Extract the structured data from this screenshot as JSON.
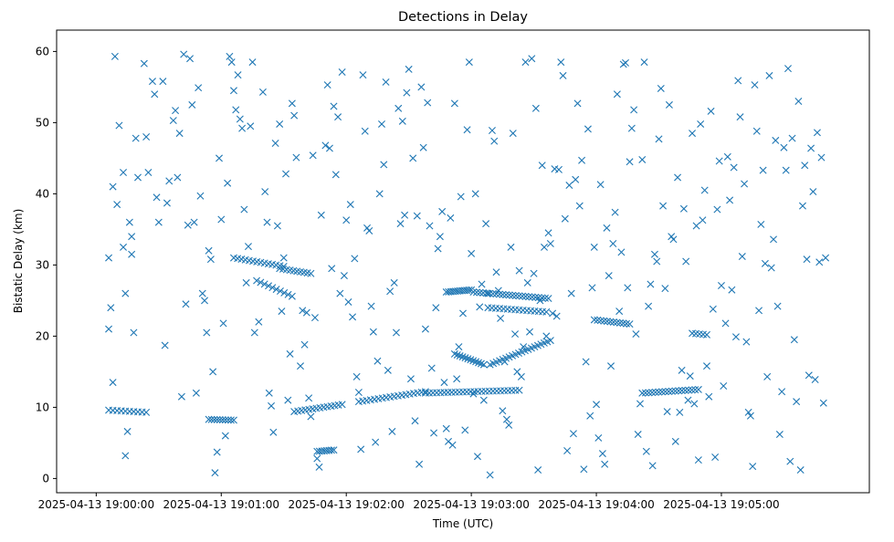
{
  "chart_data": {
    "type": "scatter",
    "title": "Detections in Delay",
    "xlabel": "Time (UTC)",
    "ylabel": "Bistatic Delay (km)",
    "marker": "x",
    "marker_color": "#1f77b4",
    "x_unit": "seconds",
    "xlim": [
      -19,
      371
    ],
    "ylim": [
      -2,
      63
    ],
    "x_ticks": [
      {
        "value": 0,
        "label": "2025-04-13 19:00:00"
      },
      {
        "value": 60,
        "label": "2025-04-13 19:01:00"
      },
      {
        "value": 120,
        "label": "2025-04-13 19:02:00"
      },
      {
        "value": 180,
        "label": "2025-04-13 19:03:00"
      },
      {
        "value": 240,
        "label": "2025-04-13 19:04:00"
      },
      {
        "value": 300,
        "label": "2025-04-13 19:05:00"
      }
    ],
    "y_ticks": [
      0,
      10,
      20,
      30,
      40,
      50,
      60
    ],
    "grid": false,
    "tracks": [
      {
        "t_start": 6,
        "t_end": 24,
        "delay_start": 9.6,
        "delay_end": 9.3,
        "count": 10
      },
      {
        "t_start": 54,
        "t_end": 66,
        "delay_start": 8.3,
        "delay_end": 8.2,
        "count": 10
      },
      {
        "t_start": 66,
        "t_end": 90,
        "delay_start": 31.0,
        "delay_end": 29.8,
        "count": 14
      },
      {
        "t_start": 88,
        "t_end": 103,
        "delay_start": 29.5,
        "delay_end": 28.8,
        "count": 10
      },
      {
        "t_start": 77,
        "t_end": 94,
        "delay_start": 27.8,
        "delay_end": 25.6,
        "count": 10
      },
      {
        "t_start": 95,
        "t_end": 118,
        "delay_start": 9.4,
        "delay_end": 10.4,
        "count": 14
      },
      {
        "t_start": 106,
        "t_end": 114,
        "delay_start": 3.8,
        "delay_end": 4.0,
        "count": 8
      },
      {
        "t_start": 126,
        "t_end": 158,
        "delay_start": 10.8,
        "delay_end": 12.2,
        "count": 18
      },
      {
        "t_start": 158,
        "t_end": 203,
        "delay_start": 12.0,
        "delay_end": 12.4,
        "count": 26
      },
      {
        "t_start": 168,
        "t_end": 180,
        "delay_start": 26.2,
        "delay_end": 26.5,
        "count": 12
      },
      {
        "t_start": 181,
        "t_end": 217,
        "delay_start": 26.2,
        "delay_end": 25.3,
        "count": 24
      },
      {
        "t_start": 188,
        "t_end": 216,
        "delay_start": 24.0,
        "delay_end": 23.4,
        "count": 16
      },
      {
        "t_start": 172,
        "t_end": 186,
        "delay_start": 17.5,
        "delay_end": 16.0,
        "count": 12
      },
      {
        "t_start": 189,
        "t_end": 218,
        "delay_start": 16.0,
        "delay_end": 19.4,
        "count": 20
      },
      {
        "t_start": 239,
        "t_end": 256,
        "delay_start": 22.3,
        "delay_end": 21.7,
        "count": 12
      },
      {
        "t_start": 262,
        "t_end": 289,
        "delay_start": 12.0,
        "delay_end": 12.5,
        "count": 18
      },
      {
        "t_start": 286,
        "t_end": 293,
        "delay_start": 20.4,
        "delay_end": 20.2,
        "count": 5
      }
    ],
    "scatter": [
      [
        6,
        31
      ],
      [
        7,
        24
      ],
      [
        6,
        21
      ],
      [
        8,
        41
      ],
      [
        9,
        59.3
      ],
      [
        8,
        13.5
      ],
      [
        10,
        38.5
      ],
      [
        11,
        49.6
      ],
      [
        13,
        43
      ],
      [
        13,
        32.5
      ],
      [
        14,
        26
      ],
      [
        14,
        3.2
      ],
      [
        15,
        6.6
      ],
      [
        16,
        36
      ],
      [
        17,
        34
      ],
      [
        17,
        31.5
      ],
      [
        18,
        20.5
      ],
      [
        19,
        47.8
      ],
      [
        20,
        42.3
      ],
      [
        23,
        58.3
      ],
      [
        24,
        48
      ],
      [
        25,
        43
      ],
      [
        27,
        55.8
      ],
      [
        28,
        54
      ],
      [
        29,
        39.5
      ],
      [
        30,
        36
      ],
      [
        32,
        55.8
      ],
      [
        33,
        18.7
      ],
      [
        34,
        38.7
      ],
      [
        35,
        41.8
      ],
      [
        37,
        50.3
      ],
      [
        38,
        51.7
      ],
      [
        39,
        42.3
      ],
      [
        40,
        48.5
      ],
      [
        41,
        11.5
      ],
      [
        42,
        59.6
      ],
      [
        43,
        24.5
      ],
      [
        44,
        35.6
      ],
      [
        45,
        59
      ],
      [
        46,
        52.5
      ],
      [
        47,
        36
      ],
      [
        48,
        12
      ],
      [
        49,
        54.9
      ],
      [
        50,
        39.7
      ],
      [
        51,
        26
      ],
      [
        52,
        25
      ],
      [
        53,
        20.5
      ],
      [
        54,
        32
      ],
      [
        55,
        30.8
      ],
      [
        56,
        15
      ],
      [
        57,
        0.8
      ],
      [
        58,
        3.7
      ],
      [
        59,
        45
      ],
      [
        60,
        36.4
      ],
      [
        61,
        21.8
      ],
      [
        62,
        6
      ],
      [
        63,
        41.5
      ],
      [
        64,
        59.3
      ],
      [
        65,
        58.5
      ],
      [
        66,
        54.5
      ],
      [
        67,
        51.8
      ],
      [
        68,
        56.7
      ],
      [
        69,
        50.5
      ],
      [
        70,
        49.2
      ],
      [
        71,
        37.8
      ],
      [
        72,
        27.5
      ],
      [
        73,
        32.6
      ],
      [
        74,
        49.5
      ],
      [
        75,
        58.5
      ],
      [
        76,
        20.5
      ],
      [
        78,
        22
      ],
      [
        80,
        54.3
      ],
      [
        81,
        40.3
      ],
      [
        82,
        36
      ],
      [
        83,
        12
      ],
      [
        84,
        10.2
      ],
      [
        85,
        6.5
      ],
      [
        86,
        47.1
      ],
      [
        87,
        35.5
      ],
      [
        88,
        49.8
      ],
      [
        89,
        23.5
      ],
      [
        90,
        31
      ],
      [
        91,
        42.8
      ],
      [
        92,
        11
      ],
      [
        93,
        17.5
      ],
      [
        94,
        52.7
      ],
      [
        95,
        51
      ],
      [
        96,
        45.1
      ],
      [
        98,
        15.8
      ],
      [
        99,
        23.6
      ],
      [
        100,
        18.8
      ],
      [
        101,
        23.3
      ],
      [
        102,
        11.3
      ],
      [
        103,
        8.7
      ],
      [
        104,
        45.4
      ],
      [
        105,
        22.6
      ],
      [
        106,
        2.8
      ],
      [
        107,
        1.6
      ],
      [
        108,
        37
      ],
      [
        110,
        46.8
      ],
      [
        111,
        55.3
      ],
      [
        112,
        46.4
      ],
      [
        113,
        29.5
      ],
      [
        114,
        52.3
      ],
      [
        115,
        42.7
      ],
      [
        116,
        50.8
      ],
      [
        117,
        26
      ],
      [
        118,
        57.1
      ],
      [
        119,
        28.5
      ],
      [
        120,
        36.3
      ],
      [
        121,
        24.8
      ],
      [
        122,
        38.5
      ],
      [
        123,
        22.7
      ],
      [
        124,
        30.9
      ],
      [
        125,
        14.3
      ],
      [
        126,
        12.1
      ],
      [
        127,
        4.1
      ],
      [
        128,
        56.7
      ],
      [
        129,
        48.8
      ],
      [
        130,
        35.2
      ],
      [
        131,
        34.8
      ],
      [
        132,
        24.2
      ],
      [
        133,
        20.6
      ],
      [
        134,
        5.1
      ],
      [
        135,
        16.5
      ],
      [
        136,
        40
      ],
      [
        137,
        49.8
      ],
      [
        138,
        44.1
      ],
      [
        139,
        55.7
      ],
      [
        140,
        15.2
      ],
      [
        141,
        26.3
      ],
      [
        142,
        6.6
      ],
      [
        143,
        27.5
      ],
      [
        144,
        20.5
      ],
      [
        145,
        52
      ],
      [
        146,
        35.8
      ],
      [
        147,
        50.2
      ],
      [
        148,
        37
      ],
      [
        149,
        54.2
      ],
      [
        150,
        57.5
      ],
      [
        151,
        14
      ],
      [
        152,
        45
      ],
      [
        153,
        8.1
      ],
      [
        154,
        36.9
      ],
      [
        155,
        2
      ],
      [
        156,
        55
      ],
      [
        157,
        46.5
      ],
      [
        158,
        21
      ],
      [
        159,
        52.8
      ],
      [
        160,
        35.5
      ],
      [
        161,
        15.5
      ],
      [
        162,
        6.4
      ],
      [
        163,
        24
      ],
      [
        164,
        32.3
      ],
      [
        165,
        34
      ],
      [
        166,
        37.5
      ],
      [
        167,
        13.5
      ],
      [
        168,
        7
      ],
      [
        169,
        5.2
      ],
      [
        170,
        36.6
      ],
      [
        171,
        4.7
      ],
      [
        172,
        52.7
      ],
      [
        173,
        14
      ],
      [
        174,
        18.5
      ],
      [
        175,
        39.6
      ],
      [
        176,
        23.2
      ],
      [
        177,
        6.8
      ],
      [
        178,
        49
      ],
      [
        179,
        58.5
      ],
      [
        180,
        31.6
      ],
      [
        181,
        11.9
      ],
      [
        182,
        40
      ],
      [
        183,
        3.1
      ],
      [
        184,
        24.1
      ],
      [
        185,
        27.3
      ],
      [
        186,
        11
      ],
      [
        187,
        35.8
      ],
      [
        188,
        26
      ],
      [
        189,
        0.5
      ],
      [
        190,
        48.9
      ],
      [
        191,
        47.4
      ],
      [
        192,
        29
      ],
      [
        193,
        26.4
      ],
      [
        194,
        22.5
      ],
      [
        195,
        9.5
      ],
      [
        196,
        16.4
      ],
      [
        197,
        8.3
      ],
      [
        198,
        7.5
      ],
      [
        199,
        32.5
      ],
      [
        200,
        48.5
      ],
      [
        201,
        20.3
      ],
      [
        202,
        15
      ],
      [
        203,
        29.2
      ],
      [
        204,
        14.3
      ],
      [
        205,
        18.5
      ],
      [
        206,
        58.5
      ],
      [
        207,
        27.5
      ],
      [
        208,
        20.6
      ],
      [
        209,
        59
      ],
      [
        210,
        28.8
      ],
      [
        211,
        52
      ],
      [
        212,
        1.2
      ],
      [
        213,
        25
      ],
      [
        214,
        44
      ],
      [
        215,
        32.5
      ],
      [
        216,
        20
      ],
      [
        217,
        34.5
      ],
      [
        218,
        33
      ],
      [
        219,
        23.2
      ],
      [
        220,
        43.5
      ],
      [
        221,
        22.8
      ],
      [
        222,
        43.4
      ],
      [
        223,
        58.5
      ],
      [
        224,
        56.6
      ],
      [
        225,
        36.5
      ],
      [
        226,
        3.9
      ],
      [
        227,
        41.2
      ],
      [
        228,
        26
      ],
      [
        229,
        6.3
      ],
      [
        230,
        42
      ],
      [
        231,
        52.7
      ],
      [
        232,
        38.3
      ],
      [
        233,
        44.7
      ],
      [
        234,
        1.3
      ],
      [
        235,
        16.4
      ],
      [
        236,
        49.1
      ],
      [
        237,
        8.8
      ],
      [
        238,
        26.8
      ],
      [
        239,
        32.5
      ],
      [
        240,
        10.4
      ],
      [
        241,
        5.7
      ],
      [
        242,
        41.3
      ],
      [
        243,
        3.5
      ],
      [
        244,
        2
      ],
      [
        245,
        35.2
      ],
      [
        246,
        28.5
      ],
      [
        247,
        15.8
      ],
      [
        248,
        33
      ],
      [
        249,
        37.4
      ],
      [
        250,
        54
      ],
      [
        251,
        23.5
      ],
      [
        252,
        31.8
      ],
      [
        253,
        58.2
      ],
      [
        254,
        58.4
      ],
      [
        255,
        26.8
      ],
      [
        256,
        44.5
      ],
      [
        257,
        49.2
      ],
      [
        258,
        51.8
      ],
      [
        259,
        20.3
      ],
      [
        260,
        6.2
      ],
      [
        261,
        10.5
      ],
      [
        262,
        44.8
      ],
      [
        263,
        58.5
      ],
      [
        264,
        3.8
      ],
      [
        265,
        24.2
      ],
      [
        266,
        27.3
      ],
      [
        267,
        1.8
      ],
      [
        268,
        31.5
      ],
      [
        269,
        30.5
      ],
      [
        270,
        47.7
      ],
      [
        271,
        54.8
      ],
      [
        272,
        38.3
      ],
      [
        273,
        26.7
      ],
      [
        274,
        9.4
      ],
      [
        275,
        52.5
      ],
      [
        276,
        34
      ],
      [
        277,
        33.6
      ],
      [
        278,
        5.2
      ],
      [
        279,
        42.3
      ],
      [
        280,
        9.3
      ],
      [
        281,
        15.2
      ],
      [
        282,
        37.9
      ],
      [
        283,
        30.5
      ],
      [
        284,
        11
      ],
      [
        285,
        14.4
      ],
      [
        286,
        48.5
      ],
      [
        287,
        10.5
      ],
      [
        288,
        35.5
      ],
      [
        289,
        2.6
      ],
      [
        290,
        49.8
      ],
      [
        291,
        36.3
      ],
      [
        292,
        40.5
      ],
      [
        293,
        15.8
      ],
      [
        294,
        11.5
      ],
      [
        295,
        51.6
      ],
      [
        296,
        23.8
      ],
      [
        297,
        3
      ],
      [
        298,
        37.8
      ],
      [
        299,
        44.6
      ],
      [
        300,
        27.1
      ],
      [
        301,
        13
      ],
      [
        302,
        21.8
      ],
      [
        303,
        45.2
      ],
      [
        304,
        39.1
      ],
      [
        305,
        26.5
      ],
      [
        306,
        43.7
      ],
      [
        307,
        19.9
      ],
      [
        308,
        55.9
      ],
      [
        309,
        50.8
      ],
      [
        310,
        31.2
      ],
      [
        311,
        41.4
      ],
      [
        312,
        19.2
      ],
      [
        313,
        9.3
      ],
      [
        314,
        8.8
      ],
      [
        315,
        1.7
      ],
      [
        316,
        55.3
      ],
      [
        317,
        48.8
      ],
      [
        318,
        23.6
      ],
      [
        319,
        35.7
      ],
      [
        320,
        43.3
      ],
      [
        321,
        30.2
      ],
      [
        322,
        14.3
      ],
      [
        323,
        56.6
      ],
      [
        324,
        29.6
      ],
      [
        325,
        33.6
      ],
      [
        326,
        47.5
      ],
      [
        327,
        24.2
      ],
      [
        328,
        6.2
      ],
      [
        329,
        12.2
      ],
      [
        330,
        46.5
      ],
      [
        331,
        43.3
      ],
      [
        332,
        57.6
      ],
      [
        333,
        2.4
      ],
      [
        334,
        47.8
      ],
      [
        335,
        19.5
      ],
      [
        336,
        10.8
      ],
      [
        337,
        53
      ],
      [
        338,
        1.2
      ],
      [
        339,
        38.3
      ],
      [
        340,
        44
      ],
      [
        341,
        30.8
      ],
      [
        342,
        14.5
      ],
      [
        343,
        46.4
      ],
      [
        344,
        40.3
      ],
      [
        345,
        13.9
      ],
      [
        346,
        48.6
      ],
      [
        347,
        30.4
      ],
      [
        348,
        45.1
      ],
      [
        349,
        10.6
      ],
      [
        350,
        31
      ]
    ]
  }
}
